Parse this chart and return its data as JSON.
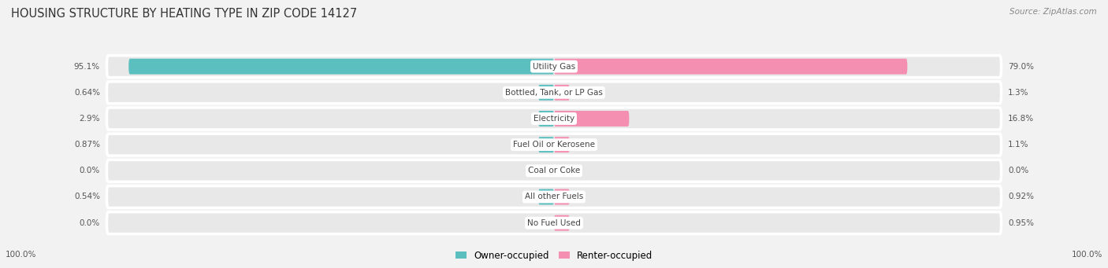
{
  "title": "HOUSING STRUCTURE BY HEATING TYPE IN ZIP CODE 14127",
  "source": "Source: ZipAtlas.com",
  "categories": [
    "Utility Gas",
    "Bottled, Tank, or LP Gas",
    "Electricity",
    "Fuel Oil or Kerosene",
    "Coal or Coke",
    "All other Fuels",
    "No Fuel Used"
  ],
  "owner_values": [
    95.1,
    0.64,
    2.9,
    0.87,
    0.0,
    0.54,
    0.0
  ],
  "renter_values": [
    79.0,
    1.3,
    16.8,
    1.1,
    0.0,
    0.92,
    0.95
  ],
  "owner_color": "#5bbfc0",
  "renter_color": "#f48fb1",
  "owner_label": "Owner-occupied",
  "renter_label": "Renter-occupied",
  "background_color": "#f2f2f2",
  "row_bg_color": "#e8e8e8",
  "title_fontsize": 10.5,
  "label_fontsize": 7.5,
  "value_fontsize": 7.5,
  "tick_fontsize": 7.5,
  "owner_label_values": [
    "95.1%",
    "0.64%",
    "2.9%",
    "0.87%",
    "0.0%",
    "0.54%",
    "0.0%"
  ],
  "renter_label_values": [
    "79.0%",
    "1.3%",
    "16.8%",
    "1.1%",
    "0.0%",
    "0.92%",
    "0.95%"
  ],
  "max_scale": 100.0,
  "min_bar_width": 3.5
}
